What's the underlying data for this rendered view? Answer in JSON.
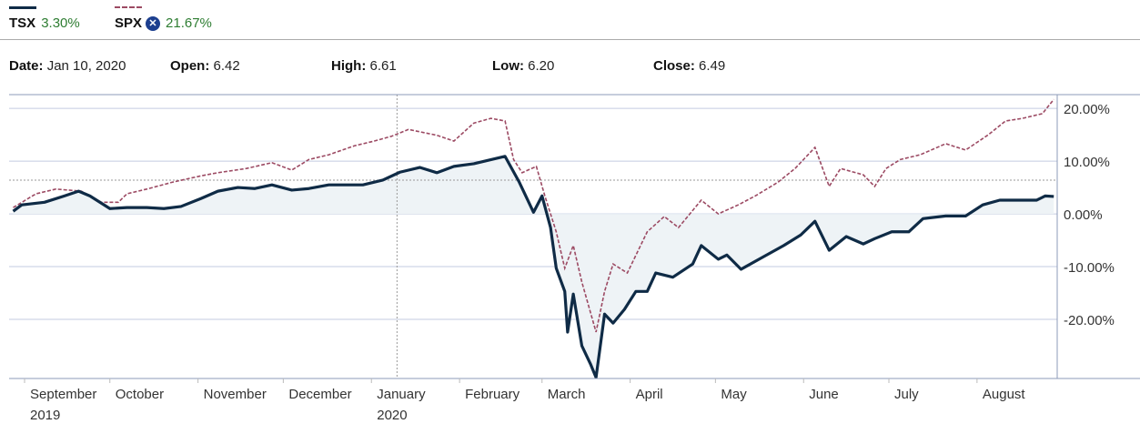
{
  "legend": [
    {
      "symbol": "TSX",
      "change": "3.30%",
      "color": "#0f2b46"
    },
    {
      "symbol": "SPX",
      "change": "21.67%",
      "color": "#9c4a63",
      "remove_icon": "close-circle-icon"
    }
  ],
  "info": {
    "date_label": "Date:",
    "date": "Jan 10, 2020",
    "open_label": "Open:",
    "open": "6.42",
    "high_label": "High:",
    "high": "6.61",
    "low_label": "Low:",
    "low": "6.20",
    "close_label": "Close:",
    "close": "6.49"
  },
  "chart_data": {
    "type": "line",
    "xunit": "days since Sep 1, 2019",
    "ylim": [
      -31.2,
      22.6
    ],
    "yticks": [
      {
        "v": 20,
        "label": "20.00%"
      },
      {
        "v": 10,
        "label": "10.00%"
      },
      {
        "v": 0,
        "label": "0.00%"
      },
      {
        "v": -10,
        "label": "-10.00%"
      },
      {
        "v": -20,
        "label": "-20.00%"
      }
    ],
    "xticks": [
      {
        "d": 0,
        "label": "September",
        "sub": "2019"
      },
      {
        "d": 30,
        "label": "October"
      },
      {
        "d": 61,
        "label": "November"
      },
      {
        "d": 91,
        "label": "December"
      },
      {
        "d": 122,
        "label": "January",
        "sub": "2020"
      },
      {
        "d": 153,
        "label": "February"
      },
      {
        "d": 182,
        "label": "March"
      },
      {
        "d": 213,
        "label": "April"
      },
      {
        "d": 243,
        "label": "May"
      },
      {
        "d": 274,
        "label": "June"
      },
      {
        "d": 304,
        "label": "July"
      },
      {
        "d": 335,
        "label": "August"
      }
    ],
    "crosshair": {
      "d": 131,
      "v": 6.4
    },
    "series": [
      {
        "name": "TSX",
        "style": "solid",
        "points": [
          [
            -4,
            0.5
          ],
          [
            -1,
            1.7
          ],
          [
            7,
            2.2
          ],
          [
            14,
            3.4
          ],
          [
            19,
            4.3
          ],
          [
            23,
            3.4
          ],
          [
            30,
            1
          ],
          [
            36,
            1.2
          ],
          [
            43,
            1.2
          ],
          [
            49,
            1
          ],
          [
            55,
            1.4
          ],
          [
            62,
            2.9
          ],
          [
            68,
            4.3
          ],
          [
            75,
            5
          ],
          [
            81,
            4.8
          ],
          [
            87,
            5.5
          ],
          [
            94,
            4.5
          ],
          [
            100,
            4.8
          ],
          [
            107,
            5.5
          ],
          [
            113,
            5.5
          ],
          [
            119,
            5.5
          ],
          [
            126,
            6.4
          ],
          [
            132,
            7.9
          ],
          [
            139,
            8.8
          ],
          [
            145,
            7.8
          ],
          [
            151,
            9
          ],
          [
            158,
            9.5
          ],
          [
            169,
            10.9
          ],
          [
            174,
            6
          ],
          [
            179,
            0.3
          ],
          [
            182,
            3.4
          ],
          [
            185,
            -2.6
          ],
          [
            187,
            -10.3
          ],
          [
            190,
            -14.7
          ],
          [
            191,
            -22.4
          ],
          [
            193,
            -15.2
          ],
          [
            196,
            -25
          ],
          [
            199,
            -28.4
          ],
          [
            201,
            -31
          ],
          [
            204,
            -19
          ],
          [
            207,
            -20.7
          ],
          [
            211,
            -18.1
          ],
          [
            215,
            -14.7
          ],
          [
            219,
            -14.7
          ],
          [
            222,
            -11.2
          ],
          [
            228,
            -12
          ],
          [
            235,
            -9.5
          ],
          [
            238,
            -6
          ],
          [
            244,
            -8.6
          ],
          [
            247,
            -7.8
          ],
          [
            252,
            -10.5
          ],
          [
            260,
            -8.1
          ],
          [
            267,
            -6
          ],
          [
            273,
            -4
          ],
          [
            278,
            -1.4
          ],
          [
            283,
            -6.9
          ],
          [
            289,
            -4.3
          ],
          [
            295,
            -5.7
          ],
          [
            299,
            -4.7
          ],
          [
            305,
            -3.4
          ],
          [
            311,
            -3.4
          ],
          [
            316,
            -0.9
          ],
          [
            324,
            -0.4
          ],
          [
            331,
            -0.4
          ],
          [
            337,
            1.7
          ],
          [
            343,
            2.6
          ],
          [
            350,
            2.6
          ],
          [
            356,
            2.6
          ],
          [
            359,
            3.4
          ],
          [
            362,
            3.3
          ]
        ]
      },
      {
        "name": "SPX",
        "style": "dashed",
        "points": [
          [
            -4,
            1.2
          ],
          [
            4,
            3.8
          ],
          [
            11,
            4.7
          ],
          [
            20,
            4.3
          ],
          [
            27,
            2.2
          ],
          [
            33,
            2.2
          ],
          [
            36,
            3.8
          ],
          [
            43,
            4.7
          ],
          [
            52,
            6
          ],
          [
            62,
            7.2
          ],
          [
            68,
            7.8
          ],
          [
            78,
            8.6
          ],
          [
            87,
            9.7
          ],
          [
            94,
            8.3
          ],
          [
            100,
            10.3
          ],
          [
            107,
            11.2
          ],
          [
            116,
            12.9
          ],
          [
            123,
            13.8
          ],
          [
            129,
            14.7
          ],
          [
            135,
            16
          ],
          [
            145,
            14.9
          ],
          [
            151,
            13.8
          ],
          [
            158,
            17.2
          ],
          [
            164,
            18.1
          ],
          [
            169,
            17.6
          ],
          [
            172,
            10.3
          ],
          [
            175,
            7.8
          ],
          [
            180,
            9
          ],
          [
            183,
            3.4
          ],
          [
            187,
            -3.4
          ],
          [
            190,
            -10.3
          ],
          [
            193,
            -6
          ],
          [
            196,
            -12.9
          ],
          [
            201,
            -22.4
          ],
          [
            204,
            -14.7
          ],
          [
            207,
            -9.5
          ],
          [
            212,
            -11.2
          ],
          [
            219,
            -3.4
          ],
          [
            225,
            -0.5
          ],
          [
            230,
            -2.6
          ],
          [
            238,
            2.6
          ],
          [
            244,
            0
          ],
          [
            251,
            1.7
          ],
          [
            257,
            3.4
          ],
          [
            265,
            6
          ],
          [
            271,
            8.6
          ],
          [
            278,
            12.6
          ],
          [
            283,
            5.2
          ],
          [
            287,
            8.6
          ],
          [
            295,
            7.4
          ],
          [
            299,
            5.2
          ],
          [
            303,
            8.6
          ],
          [
            308,
            10.3
          ],
          [
            315,
            11.2
          ],
          [
            324,
            13.3
          ],
          [
            331,
            12.1
          ],
          [
            339,
            15
          ],
          [
            345,
            17.6
          ],
          [
            351,
            18.1
          ],
          [
            358,
            19
          ],
          [
            362,
            21.7
          ]
        ]
      }
    ]
  }
}
